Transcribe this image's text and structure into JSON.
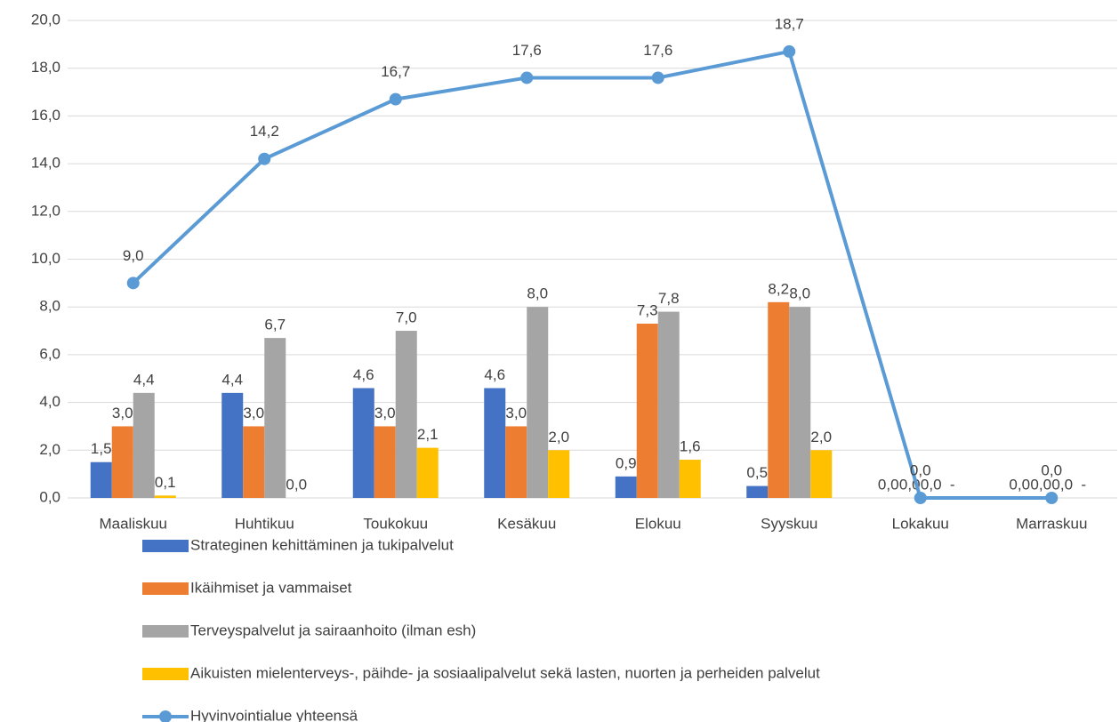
{
  "chart_data": {
    "type": "bar",
    "categories": [
      "Maaliskuu",
      "Huhtikuu",
      "Toukokuu",
      "Kesäkuu",
      "Elokuu",
      "Syyskuu",
      "Lokakuu",
      "Marraskuu"
    ],
    "series": [
      {
        "name": "Strateginen kehittäminen ja tukipalvelut",
        "color": "#4472c4",
        "type": "bar",
        "values": [
          1.5,
          4.4,
          4.6,
          4.6,
          0.9,
          0.5,
          0,
          0
        ],
        "value_labels": [
          "1,5",
          "4,4",
          "4,6",
          "4,6",
          "0,9",
          "0,5",
          "0,0",
          "0,0"
        ]
      },
      {
        "name": "Ikäihmiset ja vammaiset",
        "color": "#ed7d31",
        "type": "bar",
        "values": [
          3.0,
          3.0,
          3.0,
          3.0,
          7.3,
          8.2,
          0,
          0
        ],
        "value_labels": [
          "3,0",
          "3,0",
          "3,0",
          "3,0",
          "7,3",
          "8,2",
          "0,0",
          "0,0"
        ]
      },
      {
        "name": "Terveyspalvelut ja sairaanhoito (ilman esh)",
        "color": "#a5a5a5",
        "type": "bar",
        "values": [
          4.4,
          6.7,
          7.0,
          8.0,
          7.8,
          8.0,
          0,
          0
        ],
        "value_labels": [
          "4,4",
          "6,7",
          "7,0",
          "8,0",
          "7,8",
          "8,0",
          "0,0",
          "0,0"
        ]
      },
      {
        "name": "Aikuisten mielenterveys-, päihde- ja sosiaalipalvelut sekä lasten, nuorten ja perheiden palvelut",
        "color": "#ffc000",
        "type": "bar",
        "values": [
          0.1,
          0.0,
          2.1,
          2.0,
          1.6,
          2.0,
          null,
          null
        ],
        "value_labels": [
          "0,1",
          "0,0",
          "2,1",
          "2,0",
          "1,6",
          "2,0",
          "-",
          "-"
        ]
      },
      {
        "name": "Hyvinvointialue yhteensä",
        "color": "#5b9bd5",
        "type": "line",
        "values": [
          9.0,
          14.2,
          16.7,
          17.6,
          17.6,
          18.7,
          0,
          0
        ],
        "value_labels": [
          "9,0",
          "14,2",
          "16,7",
          "17,6",
          "17,6",
          "18,7",
          "0,0",
          "0,0"
        ]
      }
    ],
    "ylim": [
      0,
      20
    ],
    "yticks": [
      {
        "value": 0,
        "label": "0,0"
      },
      {
        "value": 2,
        "label": "2,0"
      },
      {
        "value": 4,
        "label": "4,0"
      },
      {
        "value": 6,
        "label": "6,0"
      },
      {
        "value": 8,
        "label": "8,0"
      },
      {
        "value": 10,
        "label": "10,0"
      },
      {
        "value": 12,
        "label": "12,0"
      },
      {
        "value": 14,
        "label": "14,0"
      },
      {
        "value": 16,
        "label": "16,0"
      },
      {
        "value": 18,
        "label": "18,0"
      },
      {
        "value": 20,
        "label": "20,0"
      }
    ],
    "grid": true,
    "legend": "bottom"
  }
}
